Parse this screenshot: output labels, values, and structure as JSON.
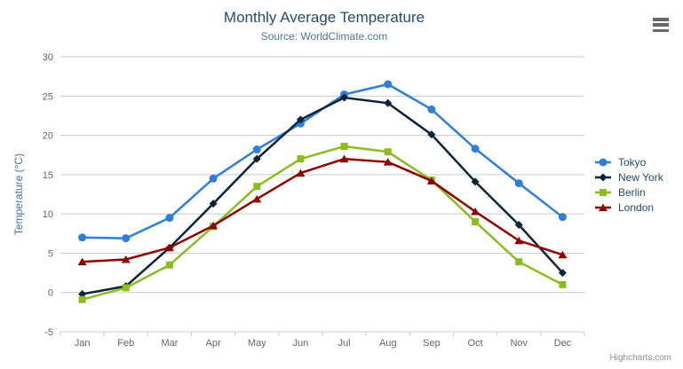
{
  "chart": {
    "title": "Monthly Average Temperature",
    "subtitle": "Source: WorldClimate.com",
    "credit": "Highcharts.com"
  },
  "toolbar": {
    "menu_icon": "hamburger-menu-icon"
  },
  "chart_data": {
    "type": "line",
    "title": "Monthly Average Temperature",
    "subtitle": "Source: WorldClimate.com",
    "categories": [
      "Jan",
      "Feb",
      "Mar",
      "Apr",
      "May",
      "Jun",
      "Jul",
      "Aug",
      "Sep",
      "Oct",
      "Nov",
      "Dec"
    ],
    "series": [
      {
        "name": "Tokyo",
        "color": "#2f7ed8",
        "marker": "circle",
        "values": [
          7.0,
          6.9,
          9.5,
          14.5,
          18.2,
          21.5,
          25.2,
          26.5,
          23.3,
          18.3,
          13.9,
          9.6
        ]
      },
      {
        "name": "New York",
        "color": "#0d233a",
        "marker": "diamond",
        "values": [
          -0.2,
          0.8,
          5.7,
          11.3,
          17.0,
          22.0,
          24.8,
          24.1,
          20.1,
          14.1,
          8.6,
          2.5
        ]
      },
      {
        "name": "Berlin",
        "color": "#8bbc21",
        "marker": "square",
        "values": [
          -0.9,
          0.6,
          3.5,
          8.4,
          13.5,
          17.0,
          18.6,
          17.9,
          14.3,
          9.0,
          3.9,
          1.0
        ]
      },
      {
        "name": "London",
        "color": "#910000",
        "marker": "triangle",
        "values": [
          3.9,
          4.2,
          5.7,
          8.5,
          11.9,
          15.2,
          17.0,
          16.6,
          14.2,
          10.3,
          6.6,
          4.8
        ]
      }
    ],
    "xlabel": "",
    "ylabel": "Temperature (°C)",
    "ylim": [
      -5,
      30
    ],
    "ytick_step": 5,
    "grid": true,
    "legend_position": "right"
  },
  "colors": {
    "title_text": "#274b6d",
    "subtitle_text": "#4d759e",
    "axis_title_text": "#4572a7",
    "axis_label_text": "#666666",
    "grid_line": "#c9c9c9",
    "axis_line": "#c0d0e0",
    "credit_text": "#909090",
    "menu_icon": "#666666"
  }
}
